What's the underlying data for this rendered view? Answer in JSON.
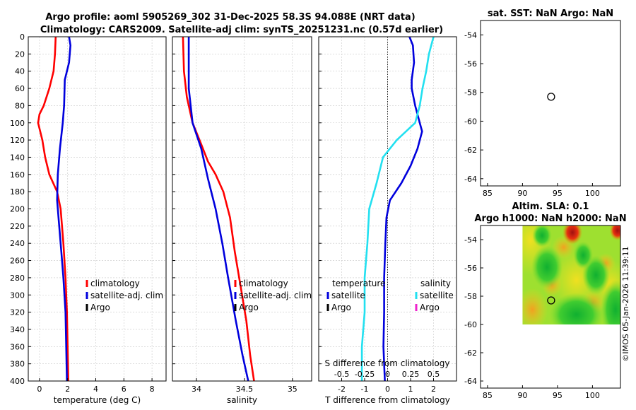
{
  "header": {
    "title_line1": "Argo profile: aoml 5905269_302 31-Dec-2025 58.3S 94.088E (NRT data)",
    "title_line2": "Climatology: CARS2009. Satellite-adj clim: synTS_20251231.nc (0.57d earlier)"
  },
  "credit": "©IMOS 05-Jan-2026 11:39:11",
  "colors": {
    "clim": "#ff0000",
    "sat": "#0000dd",
    "argo": "#000000",
    "cyan": "#22e0f0",
    "magenta": "#ee22cc"
  },
  "chart_data": [
    {
      "type": "line",
      "id": "temperature",
      "xlabel": "temperature (deg C)",
      "ylabel": "",
      "xlim": [
        -0.8,
        9
      ],
      "ylim": [
        400,
        0
      ],
      "xticks": [
        0,
        2,
        4,
        6,
        8
      ],
      "xtick_labels": [
        "0",
        "2",
        "4",
        "6",
        "8"
      ],
      "yticks": [
        0,
        20,
        40,
        60,
        80,
        100,
        120,
        140,
        160,
        180,
        200,
        220,
        240,
        260,
        280,
        300,
        320,
        340,
        360,
        380,
        400
      ],
      "ytick_labels": [
        "0",
        "20",
        "40",
        "60",
        "80",
        "100",
        "120",
        "140",
        "160",
        "180",
        "200",
        "220",
        "240",
        "260",
        "280",
        "300",
        "320",
        "340",
        "360",
        "380",
        "400"
      ],
      "grid": true,
      "legend": [
        "climatology",
        "satellite-adj. clim",
        "Argo"
      ],
      "series": [
        {
          "name": "climatology",
          "color": "#ff0000",
          "points": [
            [
              1.15,
              0
            ],
            [
              1.1,
              20
            ],
            [
              1.0,
              40
            ],
            [
              0.7,
              60
            ],
            [
              0.3,
              80
            ],
            [
              0.0,
              90
            ],
            [
              -0.1,
              100
            ],
            [
              0.05,
              110
            ],
            [
              0.2,
              120
            ],
            [
              0.4,
              140
            ],
            [
              0.7,
              160
            ],
            [
              1.25,
              180
            ],
            [
              1.5,
              200
            ],
            [
              1.7,
              240
            ],
            [
              1.85,
              280
            ],
            [
              1.95,
              320
            ],
            [
              2.0,
              360
            ],
            [
              2.05,
              400
            ]
          ]
        },
        {
          "name": "satellite-adj. clim",
          "color": "#0000dd",
          "points": [
            [
              2.1,
              0
            ],
            [
              2.2,
              10
            ],
            [
              2.1,
              30
            ],
            [
              1.8,
              50
            ],
            [
              1.75,
              80
            ],
            [
              1.65,
              100
            ],
            [
              1.45,
              130
            ],
            [
              1.3,
              160
            ],
            [
              1.25,
              190
            ],
            [
              1.4,
              220
            ],
            [
              1.55,
              250
            ],
            [
              1.7,
              280
            ],
            [
              1.85,
              320
            ],
            [
              1.9,
              360
            ],
            [
              1.95,
              400
            ]
          ]
        }
      ]
    },
    {
      "type": "line",
      "id": "salinity",
      "xlabel": "salinity",
      "xlim": [
        33.75,
        35.2
      ],
      "ylim": [
        400,
        0
      ],
      "xticks": [
        34,
        34.5,
        35
      ],
      "xtick_labels": [
        "34",
        "34.5",
        "35"
      ],
      "yticks": [
        0,
        20,
        40,
        60,
        80,
        100,
        120,
        140,
        160,
        180,
        200,
        220,
        240,
        260,
        280,
        300,
        320,
        340,
        360,
        380,
        400
      ],
      "grid": true,
      "legend": [
        "climatology",
        "satellite-adj. clim",
        "Argo"
      ],
      "series": [
        {
          "name": "climatology",
          "color": "#ff0000",
          "points": [
            [
              33.86,
              0
            ],
            [
              33.87,
              40
            ],
            [
              33.9,
              70
            ],
            [
              33.96,
              100
            ],
            [
              34.05,
              125
            ],
            [
              34.12,
              145
            ],
            [
              34.2,
              160
            ],
            [
              34.28,
              180
            ],
            [
              34.35,
              210
            ],
            [
              34.4,
              250
            ],
            [
              34.46,
              290
            ],
            [
              34.52,
              330
            ],
            [
              34.56,
              370
            ],
            [
              34.6,
              400
            ]
          ]
        },
        {
          "name": "satellite-adj. clim",
          "color": "#0000dd",
          "points": [
            [
              33.92,
              0
            ],
            [
              33.92,
              60
            ],
            [
              33.96,
              100
            ],
            [
              34.05,
              130
            ],
            [
              34.12,
              165
            ],
            [
              34.2,
              200
            ],
            [
              34.27,
              240
            ],
            [
              34.33,
              280
            ],
            [
              34.41,
              330
            ],
            [
              34.48,
              370
            ],
            [
              34.54,
              400
            ]
          ]
        }
      ]
    },
    {
      "type": "line",
      "id": "difference",
      "xlabel": "T difference from climatology",
      "xlabel_top": "S difference from climatology",
      "xlim": [
        -3,
        3
      ],
      "ylim": [
        400,
        0
      ],
      "xticks": [
        -2,
        -1,
        0,
        1,
        2
      ],
      "xtick_labels": [
        "-2",
        "-1",
        "0",
        "1",
        "2"
      ],
      "sticks": [
        -0.5,
        -0.25,
        0,
        0.25,
        0.5
      ],
      "stick_labels": [
        "-0.5",
        "-0.25",
        "0",
        "0.25",
        "0.5"
      ],
      "s_scale": 4,
      "yticks": [
        0,
        20,
        40,
        60,
        80,
        100,
        120,
        140,
        160,
        180,
        200,
        220,
        240,
        260,
        280,
        300,
        320,
        340,
        360,
        380,
        400
      ],
      "grid": true,
      "legend_temperature": {
        "title": "temperature",
        "items": [
          "satellite",
          "Argo"
        ]
      },
      "legend_salinity": {
        "title": "salinity",
        "items": [
          "satellite",
          "Argo"
        ]
      },
      "series": [
        {
          "name": "T satellite",
          "color": "#0000dd",
          "points": [
            [
              0.95,
              0
            ],
            [
              1.1,
              10
            ],
            [
              1.15,
              30
            ],
            [
              1.05,
              50
            ],
            [
              1.05,
              60
            ],
            [
              1.2,
              80
            ],
            [
              1.4,
              100
            ],
            [
              1.5,
              110
            ],
            [
              1.3,
              130
            ],
            [
              1.0,
              150
            ],
            [
              0.6,
              170
            ],
            [
              0.1,
              190
            ],
            [
              -0.05,
              210
            ],
            [
              -0.1,
              240
            ],
            [
              -0.15,
              280
            ],
            [
              -0.15,
              320
            ],
            [
              -0.18,
              360
            ],
            [
              -0.12,
              400
            ]
          ]
        },
        {
          "name": "S satellite",
          "color": "#22e0f0",
          "points": [
            [
              0.5,
              0
            ],
            [
              0.45,
              20
            ],
            [
              0.42,
              40
            ],
            [
              0.38,
              60
            ],
            [
              0.35,
              80
            ],
            [
              0.3,
              100
            ],
            [
              0.1,
              120
            ],
            [
              -0.05,
              140
            ],
            [
              -0.12,
              170
            ],
            [
              -0.2,
              200
            ],
            [
              -0.22,
              240
            ],
            [
              -0.25,
              280
            ],
            [
              -0.25,
              320
            ],
            [
              -0.28,
              360
            ],
            [
              -0.28,
              400
            ]
          ]
        }
      ]
    },
    {
      "type": "scatter",
      "id": "sst_map",
      "title": "sat. SST: NaN Argo: NaN",
      "xlim": [
        84,
        104
      ],
      "ylim": [
        -64.5,
        -53
      ],
      "xticks": [
        85,
        90,
        95,
        100
      ],
      "xtick_labels": [
        "85",
        "90",
        "95",
        "100"
      ],
      "yticks": [
        -54,
        -56,
        -58,
        -60,
        -62,
        -64
      ],
      "ytick_labels": [
        "-54",
        "-56",
        "-58",
        "-60",
        "-62",
        "-64"
      ],
      "grid": false,
      "points": [
        [
          94.088,
          -58.3
        ]
      ]
    },
    {
      "type": "heatmap",
      "id": "sla_map",
      "title_line1": "Altim. SLA: 0.1",
      "title_line2": "Argo h1000: NaN h2000: NaN",
      "xlim": [
        84,
        104
      ],
      "ylim": [
        -64.5,
        -53
      ],
      "xticks": [
        85,
        90,
        95,
        100
      ],
      "xtick_labels": [
        "85",
        "90",
        "95",
        "100"
      ],
      "yticks": [
        -54,
        -56,
        -58,
        -60,
        -62,
        -64
      ],
      "ytick_labels": [
        "-54",
        "-56",
        "-58",
        "-60",
        "-62",
        "-64"
      ],
      "data_extent": {
        "lon": [
          90,
          104
        ],
        "lat": [
          -60,
          -53
        ]
      },
      "grid": false,
      "points": [
        [
          94.088,
          -58.3
        ]
      ]
    }
  ]
}
